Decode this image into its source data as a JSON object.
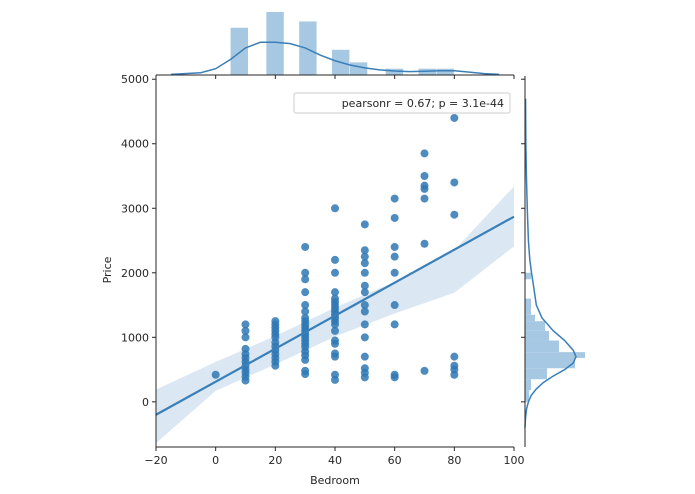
{
  "chart_data": {
    "type": "scatter",
    "subtype": "jointplot-regression",
    "xlabel": "Bedroom",
    "ylabel": "Price",
    "xlim": [
      -20,
      100
    ],
    "ylim": [
      -700,
      5050
    ],
    "x_ticks": [
      -20,
      0,
      20,
      40,
      60,
      80,
      100
    ],
    "y_ticks": [
      0,
      1000,
      2000,
      3000,
      4000,
      5000
    ],
    "x_tick_labels": [
      "−20",
      "0",
      "20",
      "40",
      "60",
      "80",
      "100"
    ],
    "y_tick_labels": [
      "0",
      "1000",
      "2000",
      "3000",
      "4000",
      "5000"
    ],
    "annotation": "pearsonr = 0.67; p = 3.1e-44",
    "legend_position": "top-right",
    "grid": false,
    "color": "#3a7fb8",
    "point_color": "#2f78b4",
    "band_color": "#cfe0f0",
    "hist_color": "#a6c8e2",
    "regression_line": {
      "x0": -20,
      "y0": -200,
      "x1": 100,
      "y1": 2870
    },
    "confidence_band": {
      "x": [
        -20,
        0,
        20,
        40,
        60,
        80,
        100
      ],
      "lower": [
        -640,
        170,
        580,
        1010,
        1370,
        1690,
        2410
      ],
      "upper": [
        190,
        620,
        1020,
        1460,
        1860,
        2350,
        3340
      ]
    },
    "points": [
      {
        "x": 0,
        "y": 420
      },
      {
        "x": 10,
        "y": 330
      },
      {
        "x": 10,
        "y": 390
      },
      {
        "x": 10,
        "y": 450
      },
      {
        "x": 10,
        "y": 500
      },
      {
        "x": 10,
        "y": 560
      },
      {
        "x": 10,
        "y": 620
      },
      {
        "x": 10,
        "y": 680
      },
      {
        "x": 10,
        "y": 740
      },
      {
        "x": 10,
        "y": 820
      },
      {
        "x": 10,
        "y": 1000
      },
      {
        "x": 10,
        "y": 1100
      },
      {
        "x": 10,
        "y": 1200
      },
      {
        "x": 20,
        "y": 560
      },
      {
        "x": 20,
        "y": 620
      },
      {
        "x": 20,
        "y": 680
      },
      {
        "x": 20,
        "y": 740
      },
      {
        "x": 20,
        "y": 800
      },
      {
        "x": 20,
        "y": 860
      },
      {
        "x": 20,
        "y": 920
      },
      {
        "x": 20,
        "y": 1000
      },
      {
        "x": 20,
        "y": 1050
      },
      {
        "x": 20,
        "y": 1100
      },
      {
        "x": 20,
        "y": 1150
      },
      {
        "x": 20,
        "y": 1200
      },
      {
        "x": 20,
        "y": 1250
      },
      {
        "x": 30,
        "y": 430
      },
      {
        "x": 30,
        "y": 480
      },
      {
        "x": 30,
        "y": 650
      },
      {
        "x": 30,
        "y": 720
      },
      {
        "x": 30,
        "y": 780
      },
      {
        "x": 30,
        "y": 850
      },
      {
        "x": 30,
        "y": 900
      },
      {
        "x": 30,
        "y": 950
      },
      {
        "x": 30,
        "y": 1000
      },
      {
        "x": 30,
        "y": 1050
      },
      {
        "x": 30,
        "y": 1100
      },
      {
        "x": 30,
        "y": 1150
      },
      {
        "x": 30,
        "y": 1200
      },
      {
        "x": 30,
        "y": 1250
      },
      {
        "x": 30,
        "y": 1300
      },
      {
        "x": 30,
        "y": 1400
      },
      {
        "x": 30,
        "y": 1500
      },
      {
        "x": 30,
        "y": 1700
      },
      {
        "x": 30,
        "y": 1900
      },
      {
        "x": 30,
        "y": 2000
      },
      {
        "x": 30,
        "y": 2400
      },
      {
        "x": 40,
        "y": 340
      },
      {
        "x": 40,
        "y": 420
      },
      {
        "x": 40,
        "y": 700
      },
      {
        "x": 40,
        "y": 750
      },
      {
        "x": 40,
        "y": 900
      },
      {
        "x": 40,
        "y": 950
      },
      {
        "x": 40,
        "y": 1100
      },
      {
        "x": 40,
        "y": 1200
      },
      {
        "x": 40,
        "y": 1250
      },
      {
        "x": 40,
        "y": 1300
      },
      {
        "x": 40,
        "y": 1350
      },
      {
        "x": 40,
        "y": 1400
      },
      {
        "x": 40,
        "y": 1450
      },
      {
        "x": 40,
        "y": 1500
      },
      {
        "x": 40,
        "y": 1550
      },
      {
        "x": 40,
        "y": 1600
      },
      {
        "x": 40,
        "y": 1700
      },
      {
        "x": 40,
        "y": 2000
      },
      {
        "x": 40,
        "y": 2200
      },
      {
        "x": 40,
        "y": 3000
      },
      {
        "x": 50,
        "y": 380
      },
      {
        "x": 50,
        "y": 450
      },
      {
        "x": 50,
        "y": 520
      },
      {
        "x": 50,
        "y": 700
      },
      {
        "x": 50,
        "y": 1000
      },
      {
        "x": 50,
        "y": 1200
      },
      {
        "x": 50,
        "y": 1400
      },
      {
        "x": 50,
        "y": 1500
      },
      {
        "x": 50,
        "y": 1700
      },
      {
        "x": 50,
        "y": 1800
      },
      {
        "x": 50,
        "y": 2000
      },
      {
        "x": 50,
        "y": 2150
      },
      {
        "x": 50,
        "y": 2250
      },
      {
        "x": 50,
        "y": 2350
      },
      {
        "x": 50,
        "y": 2750
      },
      {
        "x": 60,
        "y": 380
      },
      {
        "x": 60,
        "y": 420
      },
      {
        "x": 60,
        "y": 1200
      },
      {
        "x": 60,
        "y": 1500
      },
      {
        "x": 60,
        "y": 2000
      },
      {
        "x": 60,
        "y": 2250
      },
      {
        "x": 60,
        "y": 2400
      },
      {
        "x": 60,
        "y": 2850
      },
      {
        "x": 60,
        "y": 3150
      },
      {
        "x": 70,
        "y": 480
      },
      {
        "x": 70,
        "y": 2450
      },
      {
        "x": 70,
        "y": 3150
      },
      {
        "x": 70,
        "y": 3300
      },
      {
        "x": 70,
        "y": 3350
      },
      {
        "x": 70,
        "y": 3500
      },
      {
        "x": 70,
        "y": 3850
      },
      {
        "x": 80,
        "y": 420
      },
      {
        "x": 80,
        "y": 500
      },
      {
        "x": 80,
        "y": 560
      },
      {
        "x": 80,
        "y": 700
      },
      {
        "x": 80,
        "y": 2900
      },
      {
        "x": 80,
        "y": 3400
      },
      {
        "x": 80,
        "y": 4400
      }
    ],
    "x_histogram": {
      "bins": [
        {
          "x0": 5,
          "x1": 11,
          "count": 15
        },
        {
          "x0": 17,
          "x1": 23,
          "count": 20
        },
        {
          "x0": 28,
          "x1": 34,
          "count": 17
        },
        {
          "x0": 39,
          "x1": 45,
          "count": 8
        },
        {
          "x0": 45,
          "x1": 51,
          "count": 4
        },
        {
          "x0": 57,
          "x1": 63,
          "count": 2
        },
        {
          "x0": 68,
          "x1": 74,
          "count": 2
        },
        {
          "x0": 74,
          "x1": 80,
          "count": 2
        }
      ],
      "kde_x": [
        -15,
        -5,
        0,
        5,
        10,
        15,
        20,
        25,
        30,
        35,
        40,
        45,
        50,
        55,
        60,
        65,
        70,
        75,
        80,
        85,
        90,
        95
      ],
      "kde_y": [
        0.2,
        0.8,
        2.2,
        5.5,
        9.5,
        11.5,
        11.5,
        11,
        9.5,
        7,
        5,
        3.5,
        2.5,
        1.8,
        1.4,
        1.2,
        1.3,
        1.5,
        1.5,
        1,
        0.5,
        0.2
      ]
    },
    "y_histogram": {
      "bins": [
        {
          "y0": 0,
          "y1": 180,
          "count": 2
        },
        {
          "y0": 180,
          "y1": 350,
          "count": 3
        },
        {
          "y0": 350,
          "y1": 520,
          "count": 11
        },
        {
          "y0": 520,
          "y1": 680,
          "count": 25
        },
        {
          "y0": 680,
          "y1": 770,
          "count": 30
        },
        {
          "y0": 770,
          "y1": 950,
          "count": 17
        },
        {
          "y0": 950,
          "y1": 1100,
          "count": 12
        },
        {
          "y0": 1100,
          "y1": 1250,
          "count": 10
        },
        {
          "y0": 1250,
          "y1": 1350,
          "count": 5
        },
        {
          "y0": 1350,
          "y1": 1600,
          "count": 3
        },
        {
          "y0": 1900,
          "y1": 2000,
          "count": 3
        }
      ],
      "kde_y": [
        4700,
        4000,
        3500,
        3000,
        2500,
        2200,
        2000,
        1800,
        1500,
        1300,
        1100,
        950,
        800,
        700,
        600,
        500,
        400,
        300,
        200,
        100,
        0,
        -100,
        -200,
        -300,
        -400
      ],
      "kde_x": [
        0.2,
        0.3,
        0.5,
        0.8,
        1.2,
        1.7,
        2.3,
        3,
        4,
        6,
        10,
        14,
        17,
        18,
        17,
        14,
        10,
        6.5,
        4,
        2.2,
        1.2,
        0.6,
        0.3,
        0.1,
        0
      ]
    }
  }
}
